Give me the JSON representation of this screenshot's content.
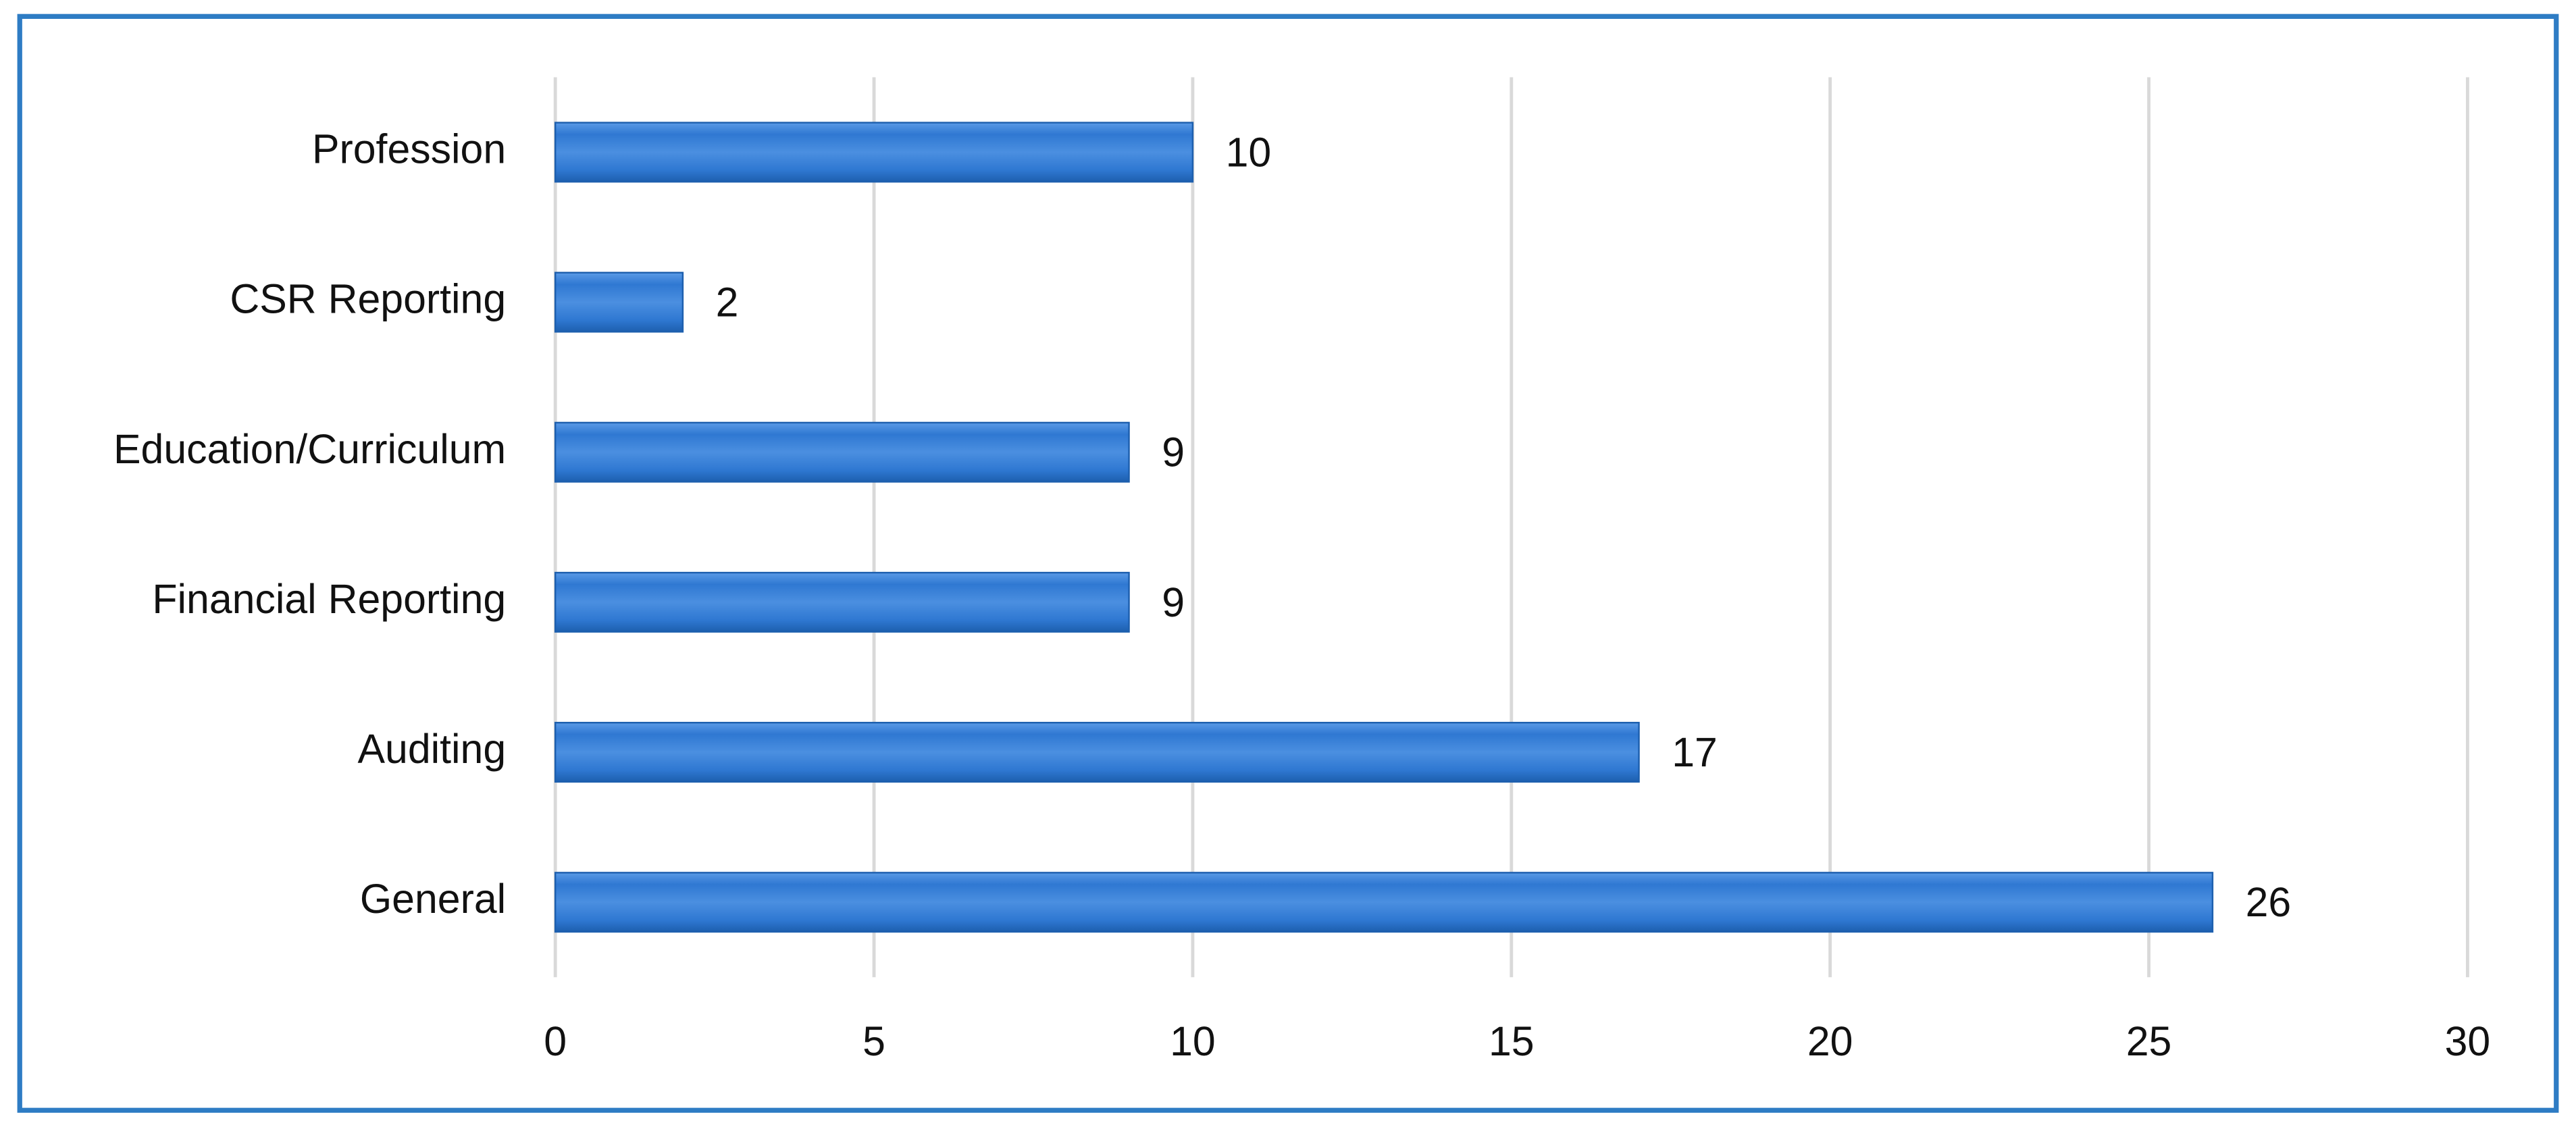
{
  "chart_data": {
    "type": "bar",
    "orientation": "horizontal",
    "categories": [
      "Profession",
      "CSR Reporting",
      "Education/Curriculum",
      "Financial Reporting",
      "Auditing",
      "General"
    ],
    "values": [
      10,
      2,
      9,
      9,
      17,
      26
    ],
    "color": "#2f78d2",
    "xlim": [
      0,
      30
    ],
    "xticks": [
      0,
      5,
      10,
      15,
      20,
      25,
      30
    ],
    "grid": true
  }
}
